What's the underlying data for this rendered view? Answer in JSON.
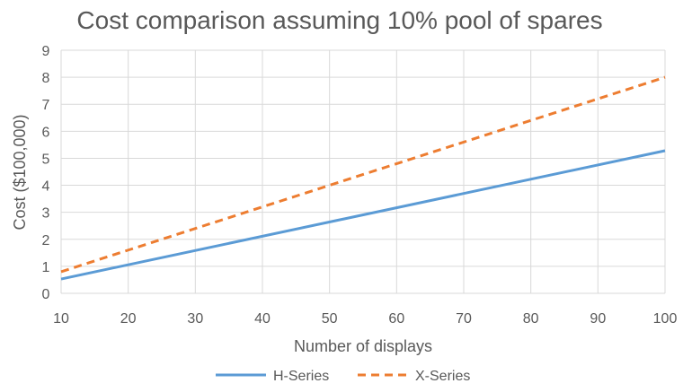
{
  "chart_data": {
    "type": "line",
    "title": "Cost comparison assuming 10% pool of spares",
    "xlabel": "Number of displays",
    "ylabel": "Cost ($100,000)",
    "x": [
      10,
      100
    ],
    "xlim": [
      10,
      100
    ],
    "ylim": [
      0,
      9
    ],
    "xticks": [
      "10",
      "20",
      "30",
      "40",
      "50",
      "60",
      "70",
      "80",
      "90",
      "100"
    ],
    "yticks": [
      "0",
      "1",
      "2",
      "3",
      "4",
      "5",
      "6",
      "7",
      "8",
      "9"
    ],
    "grid": true,
    "legend_position": "bottom",
    "series": [
      {
        "name": "H-Series",
        "values": [
          0.53,
          5.28
        ],
        "color": "#5b9bd5",
        "style": "solid"
      },
      {
        "name": "X-Series",
        "values": [
          0.8,
          8.0
        ],
        "color": "#ed7d31",
        "style": "dashed"
      }
    ]
  }
}
